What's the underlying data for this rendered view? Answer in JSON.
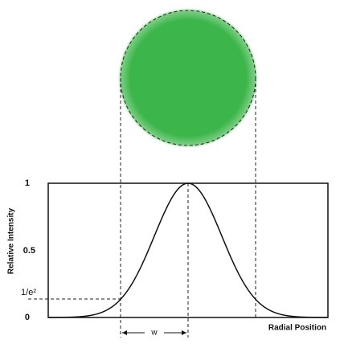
{
  "axis_labels": {
    "y": "Relative Intensity",
    "x": "Radial Position"
  },
  "ticks": [
    "1",
    "0.5",
    "1/e²",
    "0"
  ],
  "width_label": "w"
}
